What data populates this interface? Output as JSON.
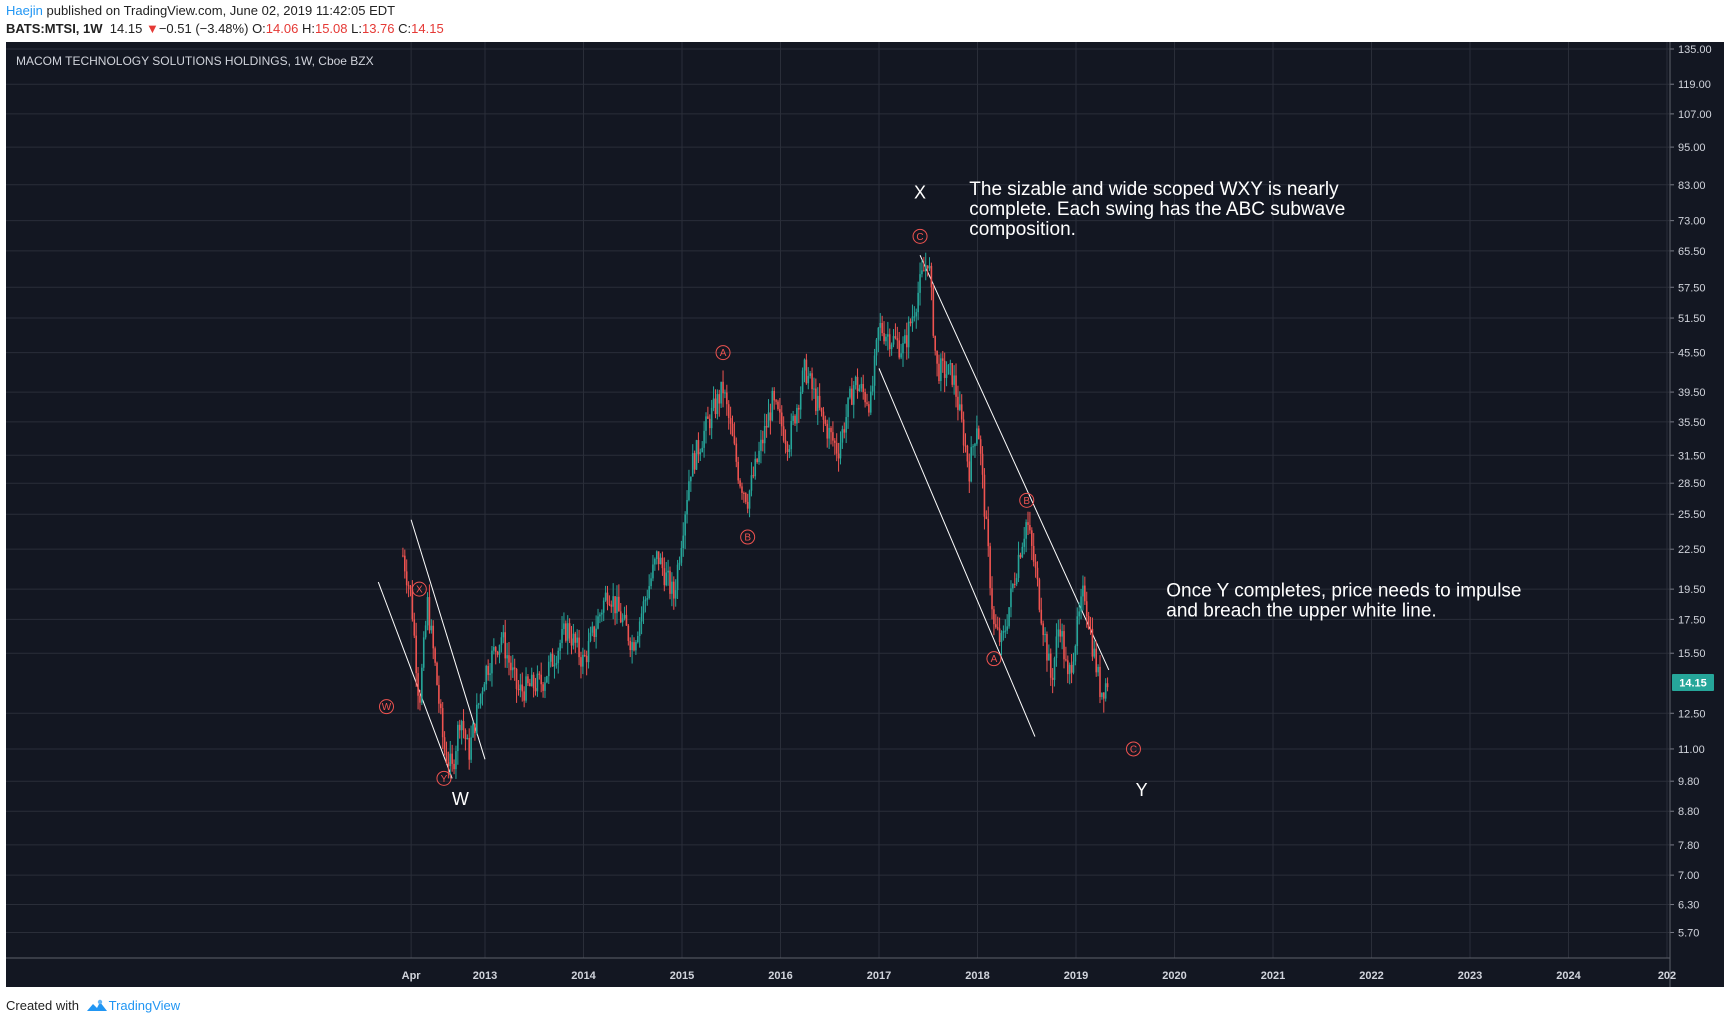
{
  "header": {
    "author": "Haejin",
    "published_text": "published on TradingView.com, June 02, 2019 11:42:05 EDT",
    "symbol": "BATS:MTSI, 1W",
    "last": "14.15",
    "change": "−0.51 (−3.48%)",
    "open_label": "O:",
    "open": "14.06",
    "high_label": "H:",
    "high": "15.08",
    "low_label": "L:",
    "low": "13.76",
    "close_label": "C:",
    "close": "14.15"
  },
  "footer": {
    "created_with": "Created with",
    "brand": "TradingView",
    "logo_icon": "tradingview-logo-icon"
  },
  "colors": {
    "background": "#131722",
    "grid": "#2a2e39",
    "up": "#26a69a",
    "down": "#ef5350",
    "label_circle": "#ef5350",
    "price_badge": "#26a69a",
    "text": "#ffffff"
  },
  "chart_data": {
    "type": "candlestick",
    "title": "MACOM TECHNOLOGY SOLUTIONS HOLDINGS, 1W, Cboe BZX",
    "scale": "log",
    "y_ticks": [
      "135.00",
      "119.00",
      "107.00",
      "95.00",
      "83.00",
      "73.00",
      "65.50",
      "57.50",
      "51.50",
      "45.50",
      "39.50",
      "35.50",
      "31.50",
      "28.50",
      "25.50",
      "22.50",
      "19.50",
      "17.50",
      "15.50",
      "12.50",
      "11.00",
      "9.80",
      "8.80",
      "7.80",
      "7.00",
      "6.30",
      "5.70"
    ],
    "x_ticks": [
      "Apr",
      "2013",
      "2014",
      "2015",
      "2016",
      "2017",
      "2018",
      "2019",
      "2020",
      "2021",
      "2022",
      "2023",
      "2024",
      "202"
    ],
    "last_price": "14.15",
    "grid": true,
    "price_path": [
      [
        "2012-03",
        22.0
      ],
      [
        "2012-04",
        19.0
      ],
      [
        "2012-05",
        13.0
      ],
      [
        "2012-06",
        18.5
      ],
      [
        "2012-07",
        14.5
      ],
      [
        "2012-08",
        11.0
      ],
      [
        "2012-09",
        10.2
      ],
      [
        "2012-10",
        12.5
      ],
      [
        "2012-11",
        10.8
      ],
      [
        "2013-01",
        14.5
      ],
      [
        "2013-03",
        16.5
      ],
      [
        "2013-05",
        13.5
      ],
      [
        "2013-08",
        14.0
      ],
      [
        "2013-11",
        17.0
      ],
      [
        "2014-01",
        15.0
      ],
      [
        "2014-04",
        19.5
      ],
      [
        "2014-07",
        16.0
      ],
      [
        "2014-10",
        22.0
      ],
      [
        "2014-12",
        19.0
      ],
      [
        "2015-02",
        30.0
      ],
      [
        "2015-04",
        35.0
      ],
      [
        "2015-06",
        40.0
      ],
      [
        "2015-08",
        29.0
      ],
      [
        "2015-09",
        27.0
      ],
      [
        "2015-12",
        38.0
      ],
      [
        "2016-02",
        33.0
      ],
      [
        "2016-04",
        43.0
      ],
      [
        "2016-06",
        36.0
      ],
      [
        "2016-08",
        32.0
      ],
      [
        "2016-10",
        41.0
      ],
      [
        "2016-12",
        38.0
      ],
      [
        "2017-01",
        50.0
      ],
      [
        "2017-04",
        46.0
      ],
      [
        "2017-06",
        58.0
      ],
      [
        "2017-07",
        64.5
      ],
      [
        "2017-08",
        43.0
      ],
      [
        "2017-10",
        42.0
      ],
      [
        "2017-12",
        30.0
      ],
      [
        "2018-01",
        36.0
      ],
      [
        "2018-03",
        17.0
      ],
      [
        "2018-04",
        16.0
      ],
      [
        "2018-06",
        22.0
      ],
      [
        "2018-07",
        25.0
      ],
      [
        "2018-08",
        21.0
      ],
      [
        "2018-10",
        14.0
      ],
      [
        "2018-11",
        17.5
      ],
      [
        "2018-12",
        14.0
      ],
      [
        "2019-02",
        19.5
      ],
      [
        "2019-03",
        16.0
      ],
      [
        "2019-04",
        13.5
      ],
      [
        "2019-05",
        14.15
      ]
    ],
    "wave_labels": [
      {
        "text": "X",
        "date": "2012-05",
        "price": 19.5
      },
      {
        "text": "W",
        "date": "2012-01",
        "price": 12.8
      },
      {
        "text": "Y",
        "date": "2012-08",
        "price": 9.9
      },
      {
        "text": "A",
        "date": "2015-06",
        "price": 45.5
      },
      {
        "text": "B",
        "date": "2015-09",
        "price": 23.5
      },
      {
        "text": "C",
        "date": "2017-06",
        "price": 69.0
      },
      {
        "text": "A",
        "date": "2018-03",
        "price": 15.2
      },
      {
        "text": "B",
        "date": "2018-07",
        "price": 26.8
      },
      {
        "text": "C",
        "date": "2019-08",
        "price": 11.0
      }
    ],
    "wave_degree_labels": [
      {
        "text": "W",
        "date": "2012-10",
        "price": 9.0
      },
      {
        "text": "X",
        "date": "2017-06",
        "price": 79.0
      },
      {
        "text": "Y",
        "date": "2019-09",
        "price": 9.3
      }
    ],
    "annotations": [
      {
        "text": "The sizable and wide scoped WXY is nearly\ncomplete. Each swing has the ABC subwave\ncomposition.",
        "date": "2017-12",
        "price": 80.0
      },
      {
        "text": "Once Y completes, price needs to impulse\nand breach the upper white line.",
        "date": "2019-12",
        "price": 19.0
      }
    ],
    "trendlines": [
      {
        "from": {
          "date": "2011-12",
          "price": 20.0
        },
        "to": {
          "date": "2012-09",
          "price": 9.9
        }
      },
      {
        "from": {
          "date": "2012-04",
          "price": 25.0
        },
        "to": {
          "date": "2013-01",
          "price": 10.6
        }
      },
      {
        "from": {
          "date": "2017-01",
          "price": 43.0
        },
        "to": {
          "date": "2018-08",
          "price": 11.5
        }
      },
      {
        "from": {
          "date": "2017-06",
          "price": 64.5
        },
        "to": {
          "date": "2019-05",
          "price": 14.6
        }
      }
    ]
  }
}
